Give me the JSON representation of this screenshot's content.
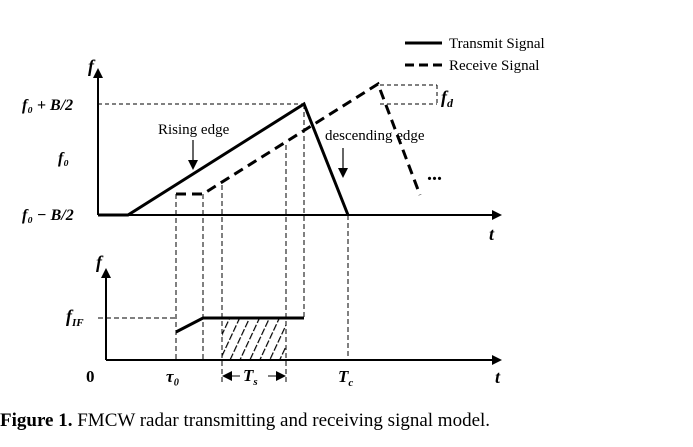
{
  "legend": {
    "transmit": "Transmit Signal",
    "receive": "Receive Signal"
  },
  "top_axis": {
    "y_label": "f",
    "x_label": "t",
    "tick_top": "f₀ + B/2",
    "tick_mid": "f₀",
    "tick_bottom": "f₀ − B/2"
  },
  "annotations": {
    "rising_edge": "Rising edge",
    "descending_edge": "descending edge",
    "f_d": "f",
    "f_d_sub": "d",
    "ellipsis": "..."
  },
  "bottom_axis": {
    "y_label": "f",
    "x_label": "t",
    "f_if": "f",
    "f_if_sub": "IF",
    "origin": "0",
    "tau0": "τ₀",
    "ts": "T",
    "ts_sub": "s",
    "tc": "T",
    "tc_sub": "c"
  },
  "caption": {
    "label": "Figure 1.",
    "text": " FMCW radar transmitting and receiving signal model."
  }
}
